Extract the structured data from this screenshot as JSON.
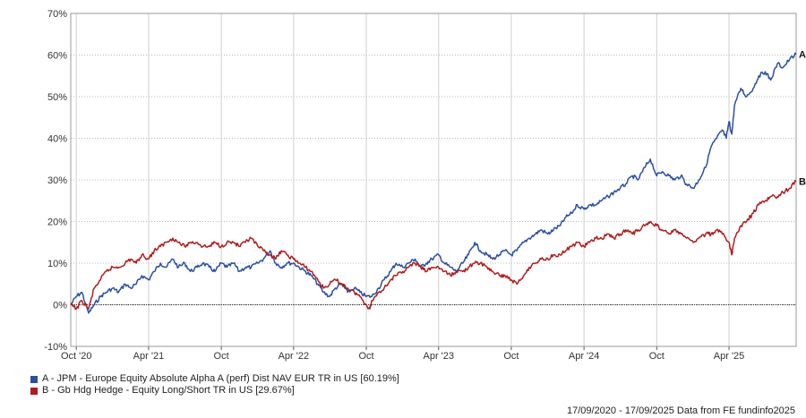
{
  "chart_data": {
    "type": "line",
    "x_range": [
      "2020-09-17",
      "2025-09-17"
    ],
    "ylim": [
      -10,
      70
    ],
    "y_ticks": [
      "-10%",
      "0%",
      "10%",
      "20%",
      "30%",
      "40%",
      "50%",
      "60%",
      "70%"
    ],
    "x_ticks": [
      "Oct '20",
      "Apr '21",
      "Oct",
      "Apr '22",
      "Oct",
      "Apr '23",
      "Oct",
      "Apr '24",
      "Oct",
      "Apr '25"
    ],
    "grid": true,
    "series": [
      {
        "name": "A - JPM - Europe Equity Absolute Alpha A (perf) Dist NAV EUR TR in US [60.19%]",
        "end_label": "A",
        "color": "#2b4fa3",
        "points": [
          [
            "2020-09-17",
            0
          ],
          [
            "2020-10-01",
            2
          ],
          [
            "2020-10-15",
            3
          ],
          [
            "2020-11-01",
            -2
          ],
          [
            "2020-11-15",
            0
          ],
          [
            "2020-12-01",
            2
          ],
          [
            "2020-12-15",
            3
          ],
          [
            "2021-01-01",
            4
          ],
          [
            "2021-01-15",
            3
          ],
          [
            "2021-02-01",
            5
          ],
          [
            "2021-02-15",
            4
          ],
          [
            "2021-03-01",
            5
          ],
          [
            "2021-03-15",
            7
          ],
          [
            "2021-04-01",
            6
          ],
          [
            "2021-04-15",
            8
          ],
          [
            "2021-05-01",
            10
          ],
          [
            "2021-05-15",
            9
          ],
          [
            "2021-06-01",
            11
          ],
          [
            "2021-06-15",
            9
          ],
          [
            "2021-07-01",
            10
          ],
          [
            "2021-07-15",
            8
          ],
          [
            "2021-08-01",
            9
          ],
          [
            "2021-08-15",
            10
          ],
          [
            "2021-09-01",
            9
          ],
          [
            "2021-09-15",
            8
          ],
          [
            "2021-10-01",
            10
          ],
          [
            "2021-10-15",
            9
          ],
          [
            "2021-11-01",
            10
          ],
          [
            "2021-11-15",
            8
          ],
          [
            "2021-12-01",
            9
          ],
          [
            "2021-12-15",
            9
          ],
          [
            "2022-01-01",
            10
          ],
          [
            "2022-01-15",
            11
          ],
          [
            "2022-02-01",
            13
          ],
          [
            "2022-02-15",
            10
          ],
          [
            "2022-03-01",
            9
          ],
          [
            "2022-03-15",
            10
          ],
          [
            "2022-04-01",
            10
          ],
          [
            "2022-04-15",
            9
          ],
          [
            "2022-05-01",
            8
          ],
          [
            "2022-05-15",
            7
          ],
          [
            "2022-06-01",
            5
          ],
          [
            "2022-06-15",
            3
          ],
          [
            "2022-07-01",
            2
          ],
          [
            "2022-07-15",
            4
          ],
          [
            "2022-08-01",
            5
          ],
          [
            "2022-08-15",
            3
          ],
          [
            "2022-09-01",
            4
          ],
          [
            "2022-09-15",
            3
          ],
          [
            "2022-10-01",
            2
          ],
          [
            "2022-10-15",
            2
          ],
          [
            "2022-11-01",
            4
          ],
          [
            "2022-11-15",
            6
          ],
          [
            "2022-12-01",
            8
          ],
          [
            "2022-12-15",
            10
          ],
          [
            "2023-01-01",
            9
          ],
          [
            "2023-01-15",
            10
          ],
          [
            "2023-02-01",
            11
          ],
          [
            "2023-02-15",
            9
          ],
          [
            "2023-03-01",
            10
          ],
          [
            "2023-03-15",
            11
          ],
          [
            "2023-04-01",
            12
          ],
          [
            "2023-04-15",
            10
          ],
          [
            "2023-05-01",
            9
          ],
          [
            "2023-05-15",
            8
          ],
          [
            "2023-06-01",
            10
          ],
          [
            "2023-06-15",
            12
          ],
          [
            "2023-07-01",
            15
          ],
          [
            "2023-07-15",
            13
          ],
          [
            "2023-08-01",
            12
          ],
          [
            "2023-08-15",
            11
          ],
          [
            "2023-09-01",
            12
          ],
          [
            "2023-09-15",
            13
          ],
          [
            "2023-10-01",
            12
          ],
          [
            "2023-10-15",
            13
          ],
          [
            "2023-11-01",
            15
          ],
          [
            "2023-11-15",
            16
          ],
          [
            "2023-12-01",
            17
          ],
          [
            "2023-12-15",
            18
          ],
          [
            "2024-01-01",
            17
          ],
          [
            "2024-01-15",
            18
          ],
          [
            "2024-02-01",
            19
          ],
          [
            "2024-02-15",
            21
          ],
          [
            "2024-03-01",
            22
          ],
          [
            "2024-03-15",
            24
          ],
          [
            "2024-04-01",
            23
          ],
          [
            "2024-04-15",
            24
          ],
          [
            "2024-05-01",
            24
          ],
          [
            "2024-05-15",
            25
          ],
          [
            "2024-06-01",
            26
          ],
          [
            "2024-06-15",
            27
          ],
          [
            "2024-07-01",
            28
          ],
          [
            "2024-07-15",
            29
          ],
          [
            "2024-08-01",
            31
          ],
          [
            "2024-08-15",
            30
          ],
          [
            "2024-09-01",
            33
          ],
          [
            "2024-09-15",
            35
          ],
          [
            "2024-10-01",
            31
          ],
          [
            "2024-10-15",
            32
          ],
          [
            "2024-11-01",
            31
          ],
          [
            "2024-11-15",
            30
          ],
          [
            "2024-12-01",
            31
          ],
          [
            "2024-12-15",
            29
          ],
          [
            "2025-01-01",
            28
          ],
          [
            "2025-01-15",
            30
          ],
          [
            "2025-02-01",
            33
          ],
          [
            "2025-02-15",
            38
          ],
          [
            "2025-03-01",
            40
          ],
          [
            "2025-03-15",
            42
          ],
          [
            "2025-03-25",
            40
          ],
          [
            "2025-04-01",
            44
          ],
          [
            "2025-04-08",
            41
          ],
          [
            "2025-04-15",
            48
          ],
          [
            "2025-05-01",
            52
          ],
          [
            "2025-05-15",
            50
          ],
          [
            "2025-06-01",
            52
          ],
          [
            "2025-06-15",
            55
          ],
          [
            "2025-07-01",
            56
          ],
          [
            "2025-07-15",
            54
          ],
          [
            "2025-08-01",
            58
          ],
          [
            "2025-08-15",
            57
          ],
          [
            "2025-09-01",
            59
          ],
          [
            "2025-09-17",
            60.19
          ]
        ]
      },
      {
        "name": "B - Gb Hdg Hedge - Equity Long/Short TR in US [29.67%]",
        "end_label": "B",
        "color": "#b01c1c",
        "points": [
          [
            "2020-09-17",
            0
          ],
          [
            "2020-10-01",
            -1
          ],
          [
            "2020-10-15",
            1
          ],
          [
            "2020-11-01",
            -1
          ],
          [
            "2020-11-15",
            4
          ],
          [
            "2020-12-01",
            6
          ],
          [
            "2020-12-15",
            8
          ],
          [
            "2021-01-01",
            9
          ],
          [
            "2021-01-15",
            9
          ],
          [
            "2021-02-01",
            10
          ],
          [
            "2021-02-15",
            11
          ],
          [
            "2021-03-01",
            10
          ],
          [
            "2021-03-15",
            12
          ],
          [
            "2021-04-01",
            11
          ],
          [
            "2021-04-15",
            13
          ],
          [
            "2021-05-01",
            14
          ],
          [
            "2021-05-15",
            15
          ],
          [
            "2021-06-01",
            16
          ],
          [
            "2021-06-15",
            15
          ],
          [
            "2021-07-01",
            14
          ],
          [
            "2021-07-15",
            15
          ],
          [
            "2021-08-01",
            15
          ],
          [
            "2021-08-15",
            14
          ],
          [
            "2021-09-01",
            14
          ],
          [
            "2021-09-15",
            15
          ],
          [
            "2021-10-01",
            14
          ],
          [
            "2021-10-15",
            15
          ],
          [
            "2021-11-01",
            15
          ],
          [
            "2021-11-15",
            14
          ],
          [
            "2021-12-01",
            15
          ],
          [
            "2021-12-15",
            16
          ],
          [
            "2022-01-01",
            14
          ],
          [
            "2022-01-15",
            13
          ],
          [
            "2022-02-01",
            12
          ],
          [
            "2022-02-15",
            11
          ],
          [
            "2022-03-01",
            13
          ],
          [
            "2022-03-15",
            12
          ],
          [
            "2022-04-01",
            11
          ],
          [
            "2022-04-15",
            10
          ],
          [
            "2022-05-01",
            9
          ],
          [
            "2022-05-15",
            8
          ],
          [
            "2022-06-01",
            6
          ],
          [
            "2022-06-15",
            4
          ],
          [
            "2022-07-01",
            5
          ],
          [
            "2022-07-15",
            6
          ],
          [
            "2022-08-01",
            5
          ],
          [
            "2022-08-15",
            4
          ],
          [
            "2022-09-01",
            3
          ],
          [
            "2022-09-15",
            2
          ],
          [
            "2022-10-01",
            0
          ],
          [
            "2022-10-10",
            -1
          ],
          [
            "2022-10-15",
            1
          ],
          [
            "2022-11-01",
            3
          ],
          [
            "2022-11-15",
            4
          ],
          [
            "2022-12-01",
            6
          ],
          [
            "2022-12-15",
            7
          ],
          [
            "2023-01-01",
            8
          ],
          [
            "2023-01-15",
            9
          ],
          [
            "2023-02-01",
            10
          ],
          [
            "2023-02-15",
            9
          ],
          [
            "2023-03-01",
            8
          ],
          [
            "2023-03-15",
            9
          ],
          [
            "2023-04-01",
            9
          ],
          [
            "2023-04-15",
            8
          ],
          [
            "2023-05-01",
            7
          ],
          [
            "2023-05-15",
            8
          ],
          [
            "2023-06-01",
            8
          ],
          [
            "2023-06-15",
            9
          ],
          [
            "2023-07-01",
            10
          ],
          [
            "2023-07-15",
            10
          ],
          [
            "2023-08-01",
            9
          ],
          [
            "2023-08-15",
            8
          ],
          [
            "2023-09-01",
            7
          ],
          [
            "2023-09-15",
            7
          ],
          [
            "2023-10-01",
            6
          ],
          [
            "2023-10-15",
            5
          ],
          [
            "2023-11-01",
            7
          ],
          [
            "2023-11-15",
            9
          ],
          [
            "2023-12-01",
            10
          ],
          [
            "2023-12-15",
            11
          ],
          [
            "2024-01-01",
            11
          ],
          [
            "2024-01-15",
            12
          ],
          [
            "2024-02-01",
            12
          ],
          [
            "2024-02-15",
            13
          ],
          [
            "2024-03-01",
            14
          ],
          [
            "2024-03-15",
            15
          ],
          [
            "2024-04-01",
            14
          ],
          [
            "2024-04-15",
            15
          ],
          [
            "2024-05-01",
            16
          ],
          [
            "2024-05-15",
            16
          ],
          [
            "2024-06-01",
            17
          ],
          [
            "2024-06-15",
            16
          ],
          [
            "2024-07-01",
            17
          ],
          [
            "2024-07-15",
            18
          ],
          [
            "2024-08-01",
            17
          ],
          [
            "2024-08-15",
            18
          ],
          [
            "2024-09-01",
            19
          ],
          [
            "2024-09-15",
            20
          ],
          [
            "2024-10-01",
            19
          ],
          [
            "2024-10-15",
            18
          ],
          [
            "2024-11-01",
            17
          ],
          [
            "2024-11-15",
            18
          ],
          [
            "2024-12-01",
            17
          ],
          [
            "2024-12-15",
            16
          ],
          [
            "2025-01-01",
            15
          ],
          [
            "2025-01-15",
            16
          ],
          [
            "2025-02-01",
            17
          ],
          [
            "2025-02-15",
            17
          ],
          [
            "2025-03-01",
            18
          ],
          [
            "2025-03-15",
            17
          ],
          [
            "2025-04-01",
            15
          ],
          [
            "2025-04-08",
            12
          ],
          [
            "2025-04-15",
            16
          ],
          [
            "2025-05-01",
            19
          ],
          [
            "2025-05-15",
            20
          ],
          [
            "2025-06-01",
            22
          ],
          [
            "2025-06-15",
            24
          ],
          [
            "2025-07-01",
            25
          ],
          [
            "2025-07-15",
            26
          ],
          [
            "2025-08-01",
            26
          ],
          [
            "2025-08-15",
            27
          ],
          [
            "2025-09-01",
            28
          ],
          [
            "2025-09-17",
            29.67
          ]
        ]
      }
    ]
  },
  "legend": [
    {
      "label": "A - JPM - Europe Equity Absolute Alpha A (perf) Dist NAV EUR TR in US [60.19%]",
      "color": "#2b4fa3"
    },
    {
      "label": "B - Gb Hdg Hedge - Equity Long/Short TR in US [29.67%]",
      "color": "#b01c1c"
    }
  ],
  "footer": "17/09/2020 - 17/09/2025 Data from FE fundinfo2025"
}
